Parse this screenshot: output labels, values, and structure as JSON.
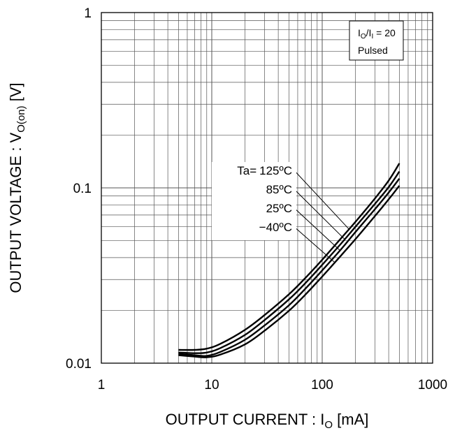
{
  "chart_data": {
    "type": "line",
    "title": "",
    "xlabel": {
      "main": "OUTPUT CURRENT : I",
      "sub": "O",
      "unit": " [mA]"
    },
    "ylabel": {
      "main": "OUTPUT VOLTAGE : V",
      "sub": "O(on)",
      "unit": " [V]"
    },
    "xscale": "log",
    "yscale": "log",
    "xlim": [
      1,
      1000
    ],
    "ylim": [
      0.01,
      1
    ],
    "grid": true,
    "x_ticks": [
      "1",
      "10",
      "100",
      "1000"
    ],
    "y_ticks": [
      "0.01",
      "0.1",
      "1"
    ],
    "conditions": {
      "line1": {
        "main": "I",
        "sub1": "O",
        "slash": "/I",
        "sub2": "I",
        "rest": " = 20"
      },
      "line2": "Pulsed"
    },
    "series_label_prefix": "Ta=",
    "series": [
      {
        "name": "125ºC",
        "points": [
          [
            5,
            0.0119
          ],
          [
            7,
            0.0119
          ],
          [
            9,
            0.0121
          ],
          [
            12,
            0.0129
          ],
          [
            20,
            0.0155
          ],
          [
            30,
            0.0188
          ],
          [
            50,
            0.0247
          ],
          [
            70,
            0.0305
          ],
          [
            100,
            0.0389
          ],
          [
            150,
            0.052
          ],
          [
            200,
            0.064
          ],
          [
            300,
            0.087
          ],
          [
            400,
            0.11
          ],
          [
            500,
            0.138
          ]
        ]
      },
      {
        "name": "85ºC",
        "points": [
          [
            5,
            0.0115
          ],
          [
            7,
            0.0114
          ],
          [
            9,
            0.0115
          ],
          [
            12,
            0.0122
          ],
          [
            20,
            0.0145
          ],
          [
            30,
            0.0176
          ],
          [
            50,
            0.0231
          ],
          [
            70,
            0.0285
          ],
          [
            100,
            0.0364
          ],
          [
            150,
            0.0485
          ],
          [
            200,
            0.06
          ],
          [
            300,
            0.081
          ],
          [
            400,
            0.101
          ],
          [
            500,
            0.124
          ]
        ]
      },
      {
        "name": "25ºC",
        "points": [
          [
            5,
            0.0113
          ],
          [
            7,
            0.0111
          ],
          [
            9,
            0.011
          ],
          [
            12,
            0.0116
          ],
          [
            20,
            0.0136
          ],
          [
            30,
            0.0164
          ],
          [
            50,
            0.0214
          ],
          [
            70,
            0.0265
          ],
          [
            100,
            0.0338
          ],
          [
            150,
            0.045
          ],
          [
            200,
            0.056
          ],
          [
            300,
            0.0755
          ],
          [
            400,
            0.094
          ],
          [
            500,
            0.113
          ]
        ]
      },
      {
        "name": "−40ºC",
        "points": [
          [
            5,
            0.0111
          ],
          [
            7,
            0.0109
          ],
          [
            9,
            0.0108
          ],
          [
            12,
            0.0112
          ],
          [
            20,
            0.0128
          ],
          [
            30,
            0.0153
          ],
          [
            50,
            0.0199
          ],
          [
            70,
            0.0245
          ],
          [
            100,
            0.0312
          ],
          [
            150,
            0.0415
          ],
          [
            200,
            0.051
          ],
          [
            300,
            0.069
          ],
          [
            400,
            0.086
          ],
          [
            500,
            0.103
          ]
        ]
      }
    ]
  }
}
